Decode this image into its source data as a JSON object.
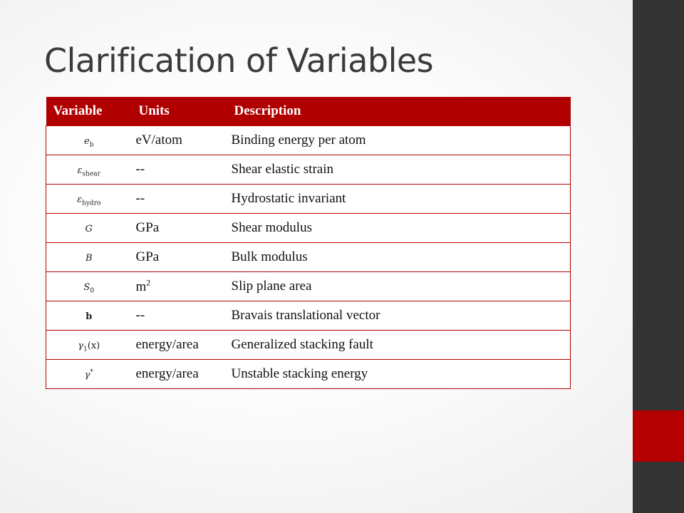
{
  "slide": {
    "title": "Clarification of Variables"
  },
  "table": {
    "headers": {
      "variable": "Variable",
      "units": "Units",
      "description": "Description"
    },
    "rows": [
      {
        "symbol": "e",
        "symbol_sub": "b",
        "units": "eV/atom",
        "description": "Binding energy per atom"
      },
      {
        "symbol": "ε",
        "symbol_sub": "shear",
        "units": "--",
        "description": "Shear elastic strain"
      },
      {
        "symbol": "ε",
        "symbol_sub": "hydro",
        "units": "--",
        "description": "Hydrostatic invariant"
      },
      {
        "symbol": "G",
        "units": "GPa",
        "description": "Shear modulus"
      },
      {
        "symbol": "B",
        "units": "GPa",
        "description": "Bulk modulus"
      },
      {
        "symbol": "S",
        "symbol_sub": "0",
        "units": "m",
        "units_sup": "2",
        "description": "Slip plane area"
      },
      {
        "symbol": "b",
        "units": "--",
        "description": "Bravais translational vector"
      },
      {
        "symbol": "γ",
        "symbol_sub": "1",
        "symbol_suffix": "(x)",
        "units": "energy/area",
        "description": "Generalized stacking fault"
      },
      {
        "symbol": "γ",
        "symbol_sup": "*",
        "units": "energy/area",
        "description": "Unstable stacking energy"
      }
    ]
  },
  "colors": {
    "accent": "#b00000",
    "side_band": "#333333",
    "title_text": "#3b3b3b"
  }
}
